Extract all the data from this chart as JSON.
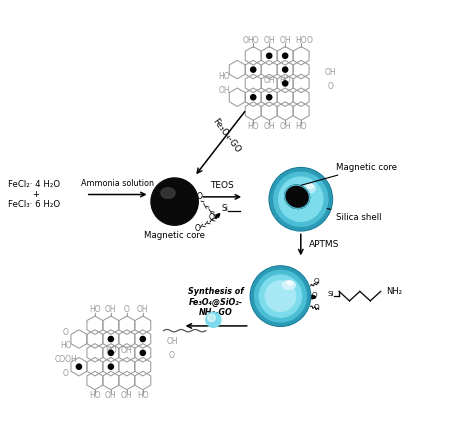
{
  "bg_color": "#ffffff",
  "figsize": [
    4.74,
    4.41
  ],
  "dpi": 100,
  "fecl2_text": "FeCl₂· 4 H₂O\n         +\nFeCl₃· 6 H₂O",
  "ammonia_text": "Ammonia solution",
  "magnetic_core_label": "Magnetic core",
  "teos_label": "TEOS",
  "fe3o4_go_label": "Fe₃O₄-GO",
  "magnetic_core_label2": "Magnetic core",
  "silica_shell_label": "Silica shell",
  "aptms_label": "APTMS",
  "synthesis_label": "Synthesis of\nFe₃O₄@SiO₂-\nNH₂-GO",
  "nh2_label": "NH₂",
  "sphere_cyan_light": "#7ddcec",
  "sphere_cyan_mid": "#4bbdd4",
  "sphere_cyan_dark": "#2a9ab5",
  "sphere_cyan_edge": "#1a7a95",
  "core_color": "#0a0a0a",
  "go_color": "#999999"
}
